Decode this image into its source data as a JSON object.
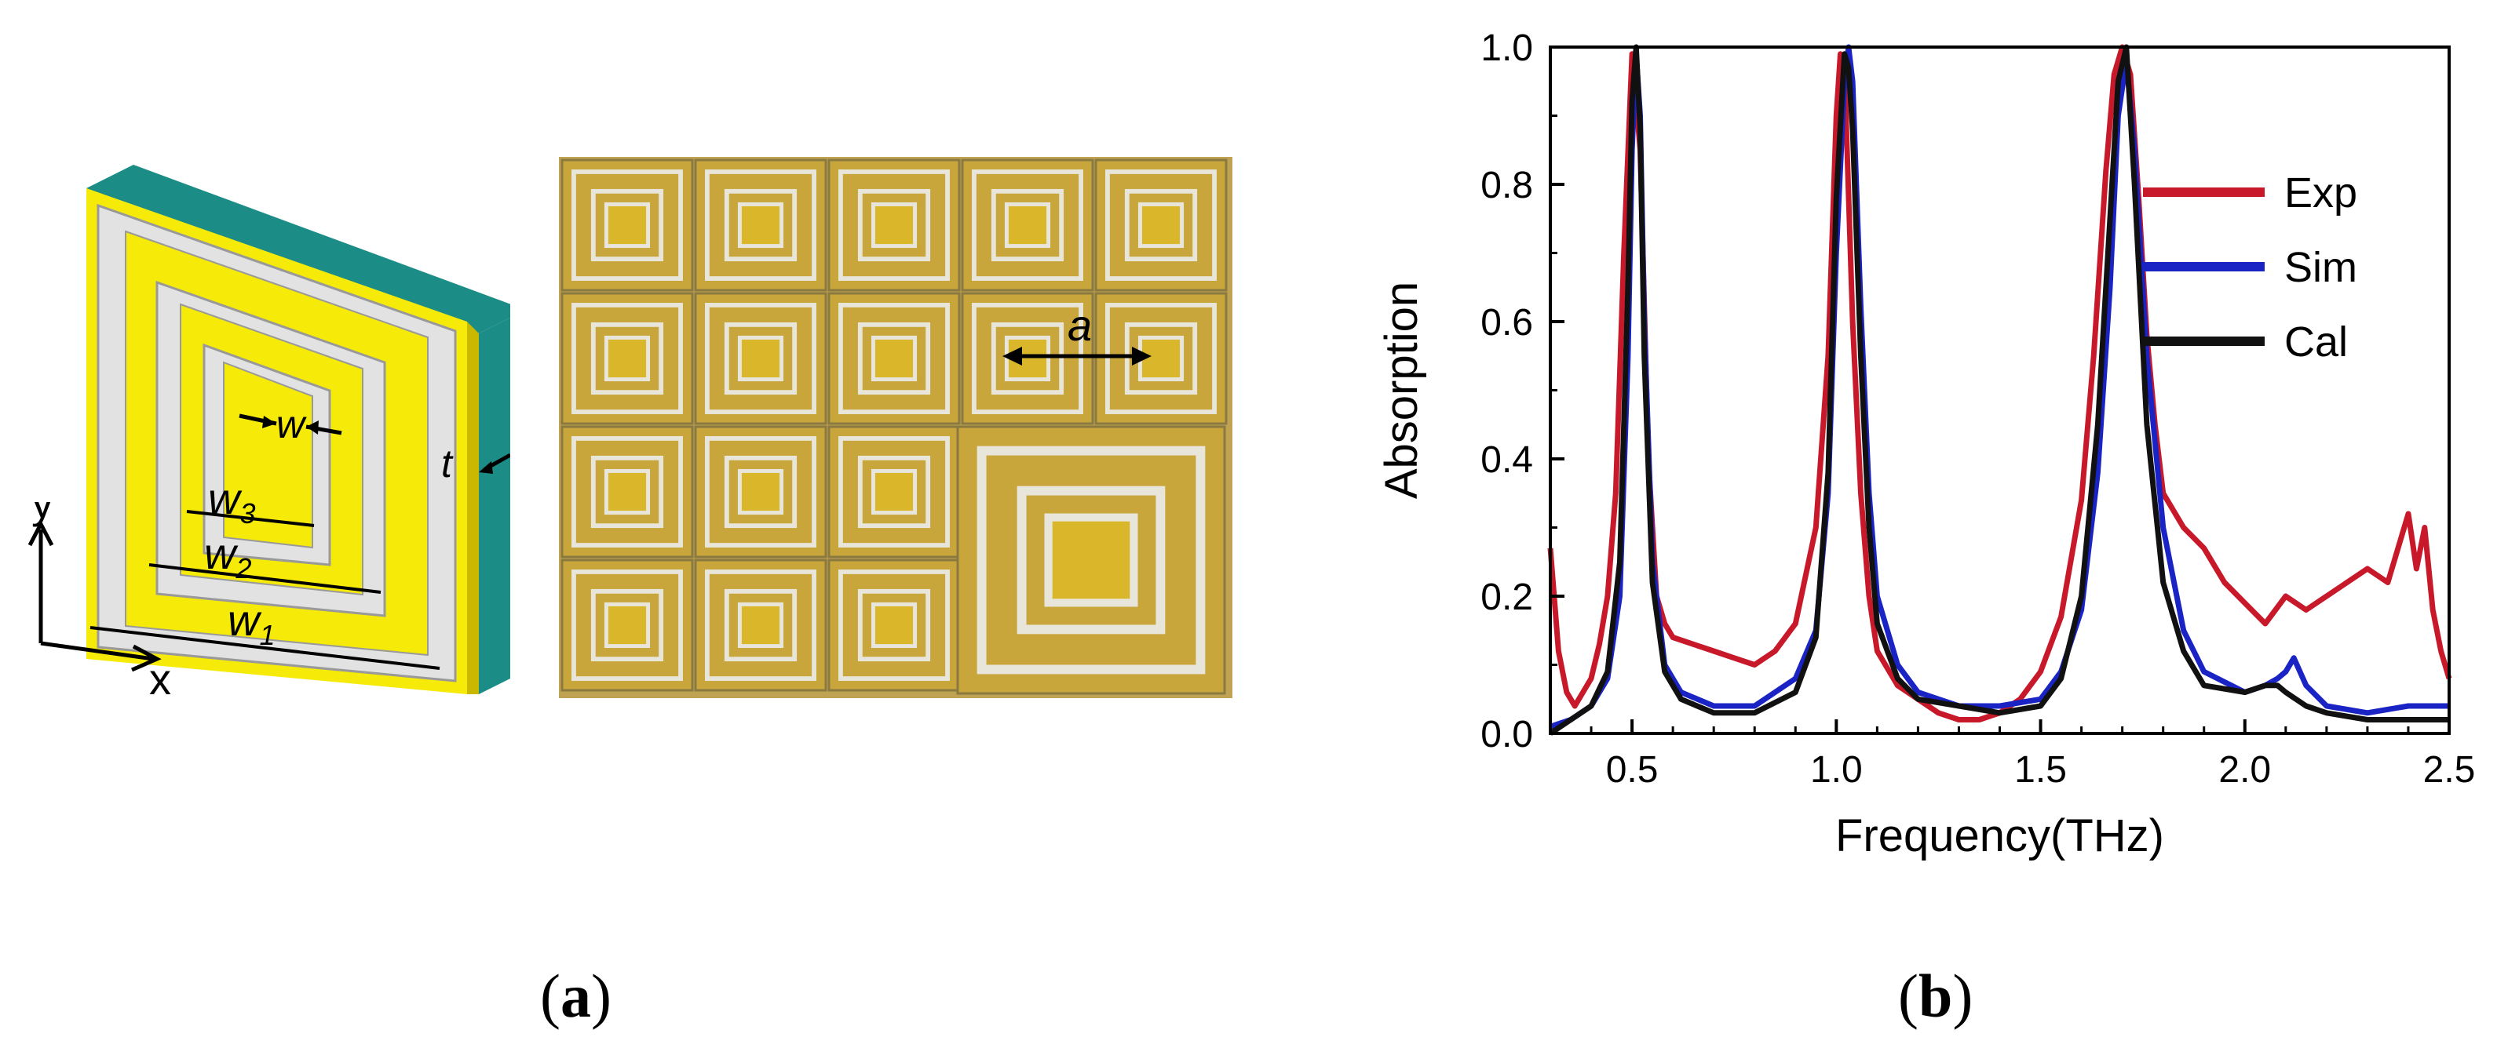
{
  "schematic": {
    "labels": {
      "w": "w",
      "t": "t",
      "w3": "w",
      "w3_sub": "3",
      "w2": "w",
      "w2_sub": "2",
      "w1": "w",
      "w1_sub": "1",
      "y": "y",
      "x": "x"
    },
    "colors": {
      "gold": "#f5ea08",
      "teal": "#1b8c86",
      "silver": "#d8d8d8"
    }
  },
  "photo": {
    "labels": {
      "a": "a"
    },
    "colors": {
      "gold": "#c9a63c",
      "ring": "#e8e6da",
      "gap": "#8a7a40"
    }
  },
  "captions": {
    "a": {
      "open": "(",
      "letter": "a",
      "close": ")"
    },
    "b": {
      "open": "(",
      "letter": "b",
      "close": ")"
    }
  },
  "chart_data": {
    "type": "line",
    "title": "",
    "xlabel": "Frequency(THz)",
    "ylabel": "Absorption",
    "xlim": [
      0.3,
      2.5
    ],
    "ylim": [
      0.0,
      1.0
    ],
    "xticks": [
      "0.5",
      "1.0",
      "1.5",
      "2.0",
      "2.5"
    ],
    "yticks": [
      "0.0",
      "0.2",
      "0.4",
      "0.6",
      "0.8",
      "1.0"
    ],
    "legend_position": "top-right",
    "series": [
      {
        "name": "Exp",
        "color": "#c8192a",
        "x": [
          0.3,
          0.32,
          0.34,
          0.36,
          0.38,
          0.4,
          0.42,
          0.44,
          0.46,
          0.48,
          0.5,
          0.52,
          0.54,
          0.56,
          0.58,
          0.6,
          0.65,
          0.7,
          0.75,
          0.8,
          0.85,
          0.9,
          0.95,
          0.98,
          1.0,
          1.01,
          1.02,
          1.04,
          1.06,
          1.08,
          1.1,
          1.15,
          1.2,
          1.25,
          1.3,
          1.35,
          1.4,
          1.45,
          1.5,
          1.55,
          1.6,
          1.63,
          1.66,
          1.68,
          1.7,
          1.72,
          1.74,
          1.76,
          1.78,
          1.8,
          1.85,
          1.9,
          1.95,
          2.0,
          2.05,
          2.1,
          2.15,
          2.2,
          2.25,
          2.3,
          2.35,
          2.4,
          2.42,
          2.44,
          2.46,
          2.48,
          2.5
        ],
        "y": [
          0.27,
          0.12,
          0.06,
          0.04,
          0.06,
          0.08,
          0.13,
          0.2,
          0.35,
          0.7,
          0.99,
          0.85,
          0.4,
          0.2,
          0.16,
          0.14,
          0.13,
          0.12,
          0.11,
          0.1,
          0.12,
          0.16,
          0.3,
          0.55,
          0.9,
          0.99,
          0.97,
          0.6,
          0.35,
          0.2,
          0.12,
          0.07,
          0.05,
          0.03,
          0.02,
          0.02,
          0.03,
          0.05,
          0.09,
          0.17,
          0.34,
          0.55,
          0.82,
          0.96,
          1.0,
          0.96,
          0.78,
          0.58,
          0.45,
          0.35,
          0.3,
          0.27,
          0.22,
          0.19,
          0.16,
          0.2,
          0.18,
          0.2,
          0.22,
          0.24,
          0.22,
          0.32,
          0.24,
          0.3,
          0.18,
          0.12,
          0.08
        ]
      },
      {
        "name": "Sim",
        "color": "#1a23c4",
        "x": [
          0.3,
          0.35,
          0.4,
          0.44,
          0.47,
          0.49,
          0.5,
          0.51,
          0.52,
          0.53,
          0.55,
          0.58,
          0.62,
          0.7,
          0.8,
          0.9,
          0.95,
          0.98,
          1.0,
          1.02,
          1.03,
          1.04,
          1.06,
          1.08,
          1.1,
          1.15,
          1.2,
          1.3,
          1.4,
          1.5,
          1.55,
          1.6,
          1.64,
          1.67,
          1.69,
          1.71,
          1.73,
          1.76,
          1.8,
          1.85,
          1.9,
          2.0,
          2.05,
          2.08,
          2.1,
          2.12,
          2.15,
          2.2,
          2.3,
          2.4,
          2.5
        ],
        "y": [
          0.01,
          0.02,
          0.04,
          0.08,
          0.2,
          0.55,
          0.85,
          0.99,
          0.9,
          0.6,
          0.25,
          0.1,
          0.06,
          0.04,
          0.04,
          0.08,
          0.15,
          0.35,
          0.7,
          0.95,
          1.0,
          0.95,
          0.62,
          0.35,
          0.2,
          0.1,
          0.06,
          0.04,
          0.04,
          0.05,
          0.09,
          0.18,
          0.38,
          0.65,
          0.9,
          0.98,
          0.85,
          0.55,
          0.3,
          0.15,
          0.09,
          0.06,
          0.07,
          0.08,
          0.09,
          0.11,
          0.07,
          0.04,
          0.03,
          0.04,
          0.04
        ]
      },
      {
        "name": "Cal",
        "color": "#111111",
        "x": [
          0.3,
          0.35,
          0.4,
          0.44,
          0.47,
          0.49,
          0.5,
          0.51,
          0.52,
          0.53,
          0.55,
          0.58,
          0.62,
          0.7,
          0.8,
          0.9,
          0.95,
          0.98,
          1.0,
          1.02,
          1.03,
          1.04,
          1.06,
          1.08,
          1.1,
          1.15,
          1.2,
          1.3,
          1.4,
          1.5,
          1.55,
          1.6,
          1.64,
          1.67,
          1.69,
          1.71,
          1.73,
          1.76,
          1.8,
          1.85,
          1.9,
          2.0,
          2.05,
          2.08,
          2.1,
          2.15,
          2.2,
          2.3,
          2.4,
          2.5
        ],
        "y": [
          0.0,
          0.02,
          0.04,
          0.09,
          0.25,
          0.65,
          0.92,
          1.0,
          0.88,
          0.55,
          0.22,
          0.09,
          0.05,
          0.03,
          0.03,
          0.06,
          0.14,
          0.38,
          0.78,
          0.99,
          0.97,
          0.88,
          0.55,
          0.3,
          0.16,
          0.08,
          0.05,
          0.04,
          0.03,
          0.04,
          0.08,
          0.2,
          0.45,
          0.75,
          0.95,
          1.0,
          0.8,
          0.45,
          0.22,
          0.12,
          0.07,
          0.06,
          0.07,
          0.07,
          0.06,
          0.04,
          0.03,
          0.02,
          0.02,
          0.02
        ]
      }
    ]
  }
}
